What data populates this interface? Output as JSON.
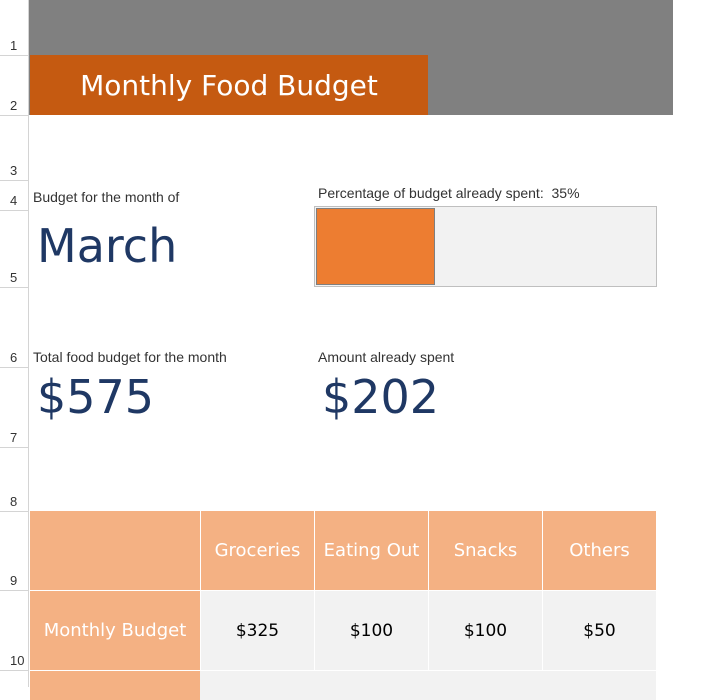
{
  "row_numbers": [
    "1",
    "2",
    "3",
    "4",
    "5",
    "6",
    "7",
    "8",
    "9",
    "10"
  ],
  "title": "Monthly Food Budget",
  "month_label": "Budget for the month of",
  "month": "March",
  "progress": {
    "label": "Percentage of budget already spent:",
    "value": 35,
    "value_label": "35%",
    "xlim": [
      0,
      100
    ]
  },
  "total_label": "Total food budget for the month",
  "total": "$575",
  "spent_label": "Amount already spent",
  "spent": "$202",
  "table": {
    "columns": [
      "Groceries",
      "Eating Out",
      "Snacks",
      "Others"
    ],
    "rows": [
      {
        "label": "Monthly Budget",
        "values": [
          "$325",
          "$100",
          "$100",
          "$50"
        ]
      }
    ]
  }
}
